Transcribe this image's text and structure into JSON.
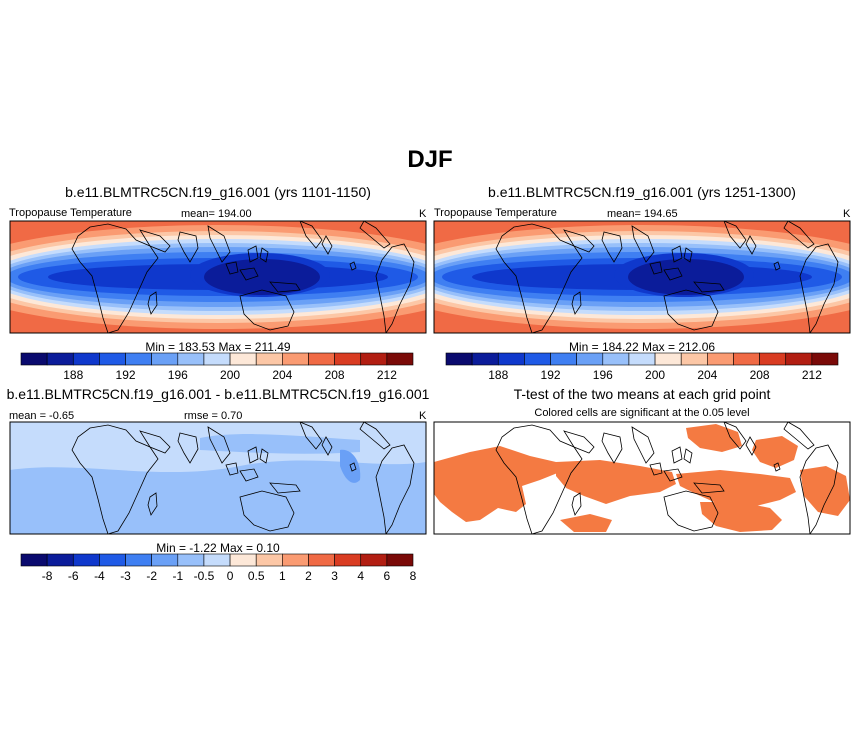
{
  "figure": {
    "title": "DJF"
  },
  "panels": {
    "p1": {
      "title": "b.e11.BLMTRC5CN.f19_g16.001 (yrs 1101-1150)",
      "left_label": "Tropopause Temperature",
      "mean_label": "mean= 194.00",
      "units": "K",
      "minmax": "Min = 183.53 Max = 211.49"
    },
    "p2": {
      "title": "b.e11.BLMTRC5CN.f19_g16.001 (yrs 1251-1300)",
      "left_label": "Tropopause Temperature",
      "mean_label": "mean= 194.65",
      "units": "K",
      "minmax": "Min = 184.22 Max = 212.06"
    },
    "p3": {
      "title": "b.e11.BLMTRC5CN.f19_g16.001 - b.e11.BLMTRC5CN.f19_g16.001",
      "mean_label": "mean =  -0.65",
      "rmse_label": "rmse =   0.70",
      "units": "K",
      "minmax": "Min =  -1.22 Max =   0.10"
    },
    "p4": {
      "title": "T-test of the two means at each grid point",
      "subtitle": "Colored cells are significant at the 0.05 level"
    }
  },
  "colorbars": {
    "abs": {
      "colors": [
        "#0a0a6e",
        "#0b1c9a",
        "#0f38cc",
        "#1f5ae6",
        "#3f7ff2",
        "#6aa0f6",
        "#98c0fa",
        "#c5dcfc",
        "#fde8d8",
        "#fcc7a6",
        "#fa9b72",
        "#f06a45",
        "#d93c22",
        "#b21e12",
        "#7a0a08"
      ],
      "labels": [
        "188",
        "192",
        "196",
        "200",
        "204",
        "208",
        "212"
      ]
    },
    "diff": {
      "colors": [
        "#0a0a6e",
        "#0b1c9a",
        "#0f38cc",
        "#1f5ae6",
        "#3f7ff2",
        "#6aa0f6",
        "#98c0fa",
        "#c5dcfc",
        "#fde8d8",
        "#fcc7a6",
        "#fa9b72",
        "#f06a45",
        "#d93c22",
        "#b21e12",
        "#7a0a08"
      ],
      "labels": [
        "-8",
        "-6",
        "-4",
        "-3",
        "-2",
        "-1",
        "-0.5",
        "0",
        "0.5",
        "1",
        "2",
        "3",
        "4",
        "6",
        "8"
      ]
    },
    "significance_color": "#f47a42"
  }
}
